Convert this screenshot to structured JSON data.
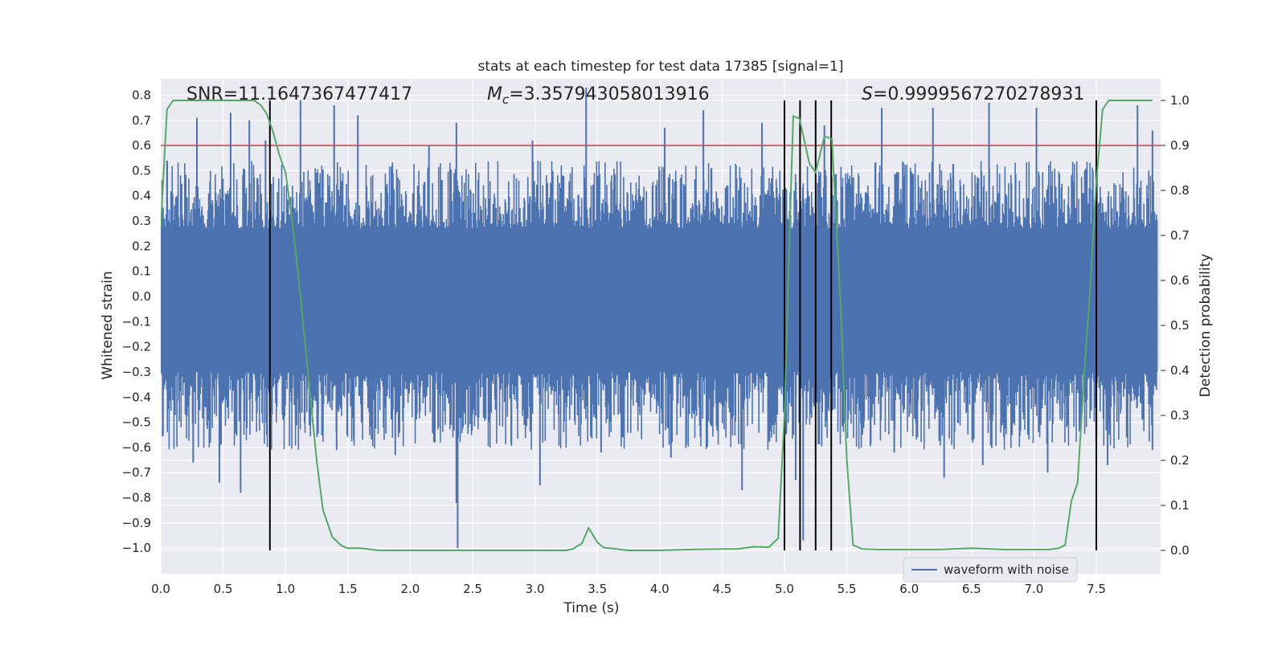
{
  "chart_data": {
    "type": "line",
    "title": "stats at each timestep for test data 17385 [signal=1]",
    "xlabel": "Time (s)",
    "ylabel": "Whitened strain",
    "ylabel_right": "Detection probability",
    "xlim": [
      0.0,
      8.0
    ],
    "ylim": [
      -1.08,
      0.86
    ],
    "ylim_right": [
      -0.05,
      1.045
    ],
    "x_ticks": [
      "0.0",
      "0.5",
      "1.0",
      "1.5",
      "2.0",
      "2.5",
      "3.0",
      "3.5",
      "4.0",
      "4.5",
      "5.0",
      "5.5",
      "6.0",
      "6.5",
      "7.0",
      "7.5"
    ],
    "x_tick_values": [
      0.0,
      0.5,
      1.0,
      1.5,
      2.0,
      2.5,
      3.0,
      3.5,
      4.0,
      4.5,
      5.0,
      5.5,
      6.0,
      6.5,
      7.0,
      7.5
    ],
    "y_ticks": [
      "0.8",
      "0.7",
      "0.6",
      "0.5",
      "0.4",
      "0.3",
      "0.2",
      "0.1",
      "0.0",
      "−0.1",
      "−0.2",
      "−0.3",
      "−0.4",
      "−0.5",
      "−0.6",
      "−0.7",
      "−0.8",
      "−0.9",
      "−1.0"
    ],
    "y_tick_values": [
      0.8,
      0.7,
      0.6,
      0.5,
      0.4,
      0.3,
      0.2,
      0.1,
      0.0,
      -0.1,
      -0.2,
      -0.3,
      -0.4,
      -0.5,
      -0.6,
      -0.7,
      -0.8,
      -0.9,
      -1.0
    ],
    "y2_ticks": [
      "1.0",
      "0.9",
      "0.8",
      "0.7",
      "0.6",
      "0.5",
      "0.4",
      "0.3",
      "0.2",
      "0.1",
      "0.0"
    ],
    "y2_tick_values": [
      1.0,
      0.9,
      0.8,
      0.7,
      0.6,
      0.5,
      0.4,
      0.3,
      0.2,
      0.1,
      0.0
    ],
    "annotations": {
      "snr": "SNR=11.1647367477417",
      "mc_symbol": "M",
      "mc_subscript": "c",
      "mc_value": "=3.357943058013916",
      "s_symbol": "S",
      "s_value": "=0.9999567270278931"
    },
    "threshold": {
      "value": 0.6,
      "color": "#c44e52"
    },
    "vertical_lines": [
      0.875,
      5.0,
      5.125,
      5.25,
      5.375,
      7.5
    ],
    "waveform": {
      "name": "waveform with noise",
      "color": "#4c72b0",
      "spike_events": [
        {
          "t": 0.05,
          "v": 0.54
        },
        {
          "t": 0.29,
          "v": 0.71
        },
        {
          "t": 0.56,
          "v": 0.73
        },
        {
          "t": 0.71,
          "v": 0.7
        },
        {
          "t": 0.84,
          "v": 0.62
        },
        {
          "t": 1.12,
          "v": 0.78
        },
        {
          "t": 1.39,
          "v": 0.76
        },
        {
          "t": 1.58,
          "v": 0.72
        },
        {
          "t": 2.15,
          "v": 0.6
        },
        {
          "t": 2.37,
          "v": 0.69
        },
        {
          "t": 2.98,
          "v": 0.62
        },
        {
          "t": 3.41,
          "v": 0.83
        },
        {
          "t": 4.04,
          "v": 0.67
        },
        {
          "t": 4.35,
          "v": 0.74
        },
        {
          "t": 4.82,
          "v": 0.69
        },
        {
          "t": 5.32,
          "v": 0.68
        },
        {
          "t": 5.78,
          "v": 0.75
        },
        {
          "t": 6.19,
          "v": 0.75
        },
        {
          "t": 6.64,
          "v": 0.77
        },
        {
          "t": 7.02,
          "v": 0.75
        },
        {
          "t": 7.83,
          "v": 0.76
        },
        {
          "t": 7.95,
          "v": 0.66
        },
        {
          "t": 0.26,
          "v": -0.66
        },
        {
          "t": 0.47,
          "v": -0.74
        },
        {
          "t": 0.64,
          "v": -0.78
        },
        {
          "t": 0.85,
          "v": -0.55
        },
        {
          "t": 1.41,
          "v": -0.61
        },
        {
          "t": 1.88,
          "v": -0.63
        },
        {
          "t": 2.38,
          "v": -1.0
        },
        {
          "t": 2.37,
          "v": -0.82
        },
        {
          "t": 3.04,
          "v": -0.75
        },
        {
          "t": 3.53,
          "v": -0.62
        },
        {
          "t": 4.09,
          "v": -0.64
        },
        {
          "t": 4.66,
          "v": -0.77
        },
        {
          "t": 5.15,
          "v": -0.97
        },
        {
          "t": 5.09,
          "v": -0.73
        },
        {
          "t": 5.88,
          "v": -0.62
        },
        {
          "t": 6.28,
          "v": -0.72
        },
        {
          "t": 6.59,
          "v": -0.67
        },
        {
          "t": 7.11,
          "v": -0.7
        },
        {
          "t": 7.59,
          "v": -0.67
        },
        {
          "t": 7.95,
          "v": -0.61
        }
      ],
      "envelope_upper": 0.42,
      "envelope_lower": -0.47,
      "core_upper": 0.27,
      "core_lower": -0.3
    },
    "probability": {
      "color": "#55a868",
      "x": [
        0.0,
        0.05,
        0.1,
        0.15,
        0.25,
        0.375,
        0.5,
        0.625,
        0.75,
        0.8,
        0.85,
        0.9,
        0.95,
        1.0,
        1.05,
        1.1,
        1.15,
        1.2,
        1.25,
        1.3,
        1.375,
        1.45,
        1.5,
        1.6,
        1.75,
        1.875,
        2.0,
        2.25,
        2.5,
        2.75,
        3.0,
        3.25,
        3.3,
        3.375,
        3.43,
        3.5,
        3.55,
        3.625,
        3.75,
        3.875,
        4.0,
        4.25,
        4.5,
        4.625,
        4.75,
        4.875,
        4.95,
        5.0,
        5.04,
        5.07,
        5.12,
        5.2,
        5.25,
        5.32,
        5.38,
        5.45,
        5.5,
        5.55,
        5.625,
        5.75,
        6.0,
        6.25,
        6.5,
        6.75,
        7.0,
        7.125,
        7.2,
        7.25,
        7.3,
        7.35,
        7.4,
        7.45,
        7.5,
        7.55,
        7.6,
        7.75,
        7.875,
        7.95
      ],
      "y": [
        0.72,
        0.98,
        1.0,
        1.0,
        1.0,
        1.0,
        1.0,
        1.0,
        1.0,
        0.99,
        0.97,
        0.93,
        0.88,
        0.84,
        0.74,
        0.62,
        0.48,
        0.34,
        0.2,
        0.09,
        0.03,
        0.01,
        0.005,
        0.005,
        0.0,
        0.0,
        0.0,
        0.0,
        0.0,
        0.0,
        0.0,
        0.0,
        0.003,
        0.015,
        0.05,
        0.018,
        0.006,
        0.004,
        0.0,
        0.0,
        0.0,
        0.002,
        0.003,
        0.003,
        0.008,
        0.007,
        0.027,
        0.3,
        0.69,
        0.965,
        0.96,
        0.86,
        0.84,
        0.92,
        0.915,
        0.55,
        0.2,
        0.012,
        0.003,
        0.002,
        0.002,
        0.002,
        0.005,
        0.002,
        0.002,
        0.002,
        0.005,
        0.012,
        0.11,
        0.15,
        0.38,
        0.58,
        0.82,
        0.98,
        1.0,
        1.0,
        1.0,
        1.0
      ]
    },
    "legend": {
      "label": "waveform with noise",
      "position": "lower-right"
    }
  }
}
